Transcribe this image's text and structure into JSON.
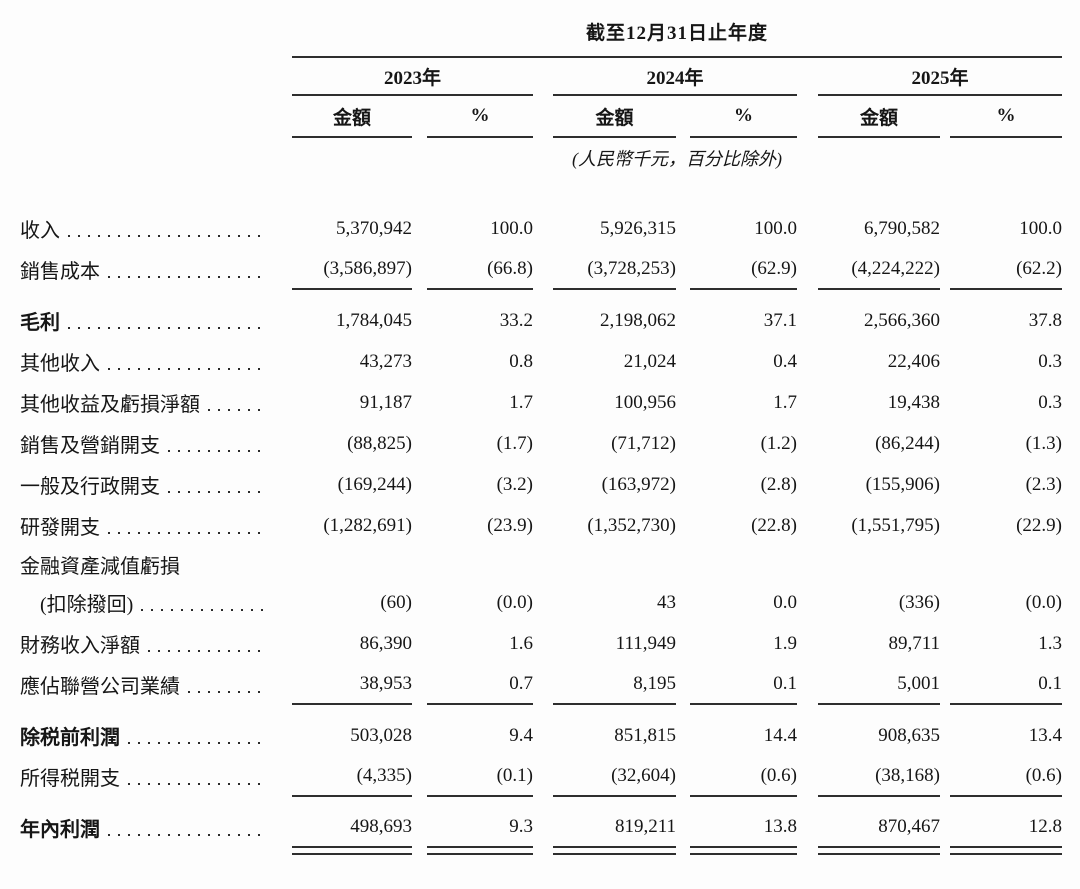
{
  "table": {
    "period_title": "截至12月31日止年度",
    "years": [
      "2023年",
      "2024年",
      "2025年"
    ],
    "amount_label": "金額",
    "percent_label": "%",
    "unit_note": "(人民幣千元，百分比除外)",
    "rows": [
      {
        "label": "收入",
        "values": [
          "5,370,942",
          "100.0",
          "5,926,315",
          "100.0",
          "6,790,582",
          "100.0"
        ]
      },
      {
        "label": "銷售成本",
        "values": [
          "(3,586,897)",
          "(66.8)",
          "(3,728,253)",
          "(62.9)",
          "(4,224,222)",
          "(62.2)"
        ],
        "underline": "single"
      },
      {
        "label": "毛利",
        "bold": true,
        "space_before": true,
        "values": [
          "1,784,045",
          "33.2",
          "2,198,062",
          "37.1",
          "2,566,360",
          "37.8"
        ]
      },
      {
        "label": "其他收入",
        "values": [
          "43,273",
          "0.8",
          "21,024",
          "0.4",
          "22,406",
          "0.3"
        ]
      },
      {
        "label": "其他收益及虧損淨額",
        "values": [
          "91,187",
          "1.7",
          "100,956",
          "1.7",
          "19,438",
          "0.3"
        ]
      },
      {
        "label": "銷售及營銷開支",
        "values": [
          "(88,825)",
          "(1.7)",
          "(71,712)",
          "(1.2)",
          "(86,244)",
          "(1.3)"
        ]
      },
      {
        "label": "一般及行政開支",
        "values": [
          "(169,244)",
          "(3.2)",
          "(163,972)",
          "(2.8)",
          "(155,906)",
          "(2.3)"
        ]
      },
      {
        "label": "研發開支",
        "values": [
          "(1,282,691)",
          "(23.9)",
          "(1,352,730)",
          "(22.8)",
          "(1,551,795)",
          "(22.9)"
        ]
      },
      {
        "label": "金融資產減值虧損",
        "label_only": true,
        "values": []
      },
      {
        "label": "(扣除撥回)",
        "indent": true,
        "values": [
          "(60)",
          "(0.0)",
          "43",
          "0.0",
          "(336)",
          "(0.0)"
        ]
      },
      {
        "label": "財務收入淨額",
        "values": [
          "86,390",
          "1.6",
          "111,949",
          "1.9",
          "89,711",
          "1.3"
        ]
      },
      {
        "label": "應佔聯營公司業績",
        "values": [
          "38,953",
          "0.7",
          "8,195",
          "0.1",
          "5,001",
          "0.1"
        ],
        "underline": "single"
      },
      {
        "label": "除税前利潤",
        "bold": true,
        "space_before": true,
        "values": [
          "503,028",
          "9.4",
          "851,815",
          "14.4",
          "908,635",
          "13.4"
        ]
      },
      {
        "label": "所得税開支",
        "values": [
          "(4,335)",
          "(0.1)",
          "(32,604)",
          "(0.6)",
          "(38,168)",
          "(0.6)"
        ],
        "underline": "single"
      },
      {
        "label": "年內利潤",
        "bold": true,
        "space_before": true,
        "values": [
          "498,693",
          "9.3",
          "819,211",
          "13.8",
          "870,467",
          "12.8"
        ],
        "underline": "double"
      }
    ]
  }
}
